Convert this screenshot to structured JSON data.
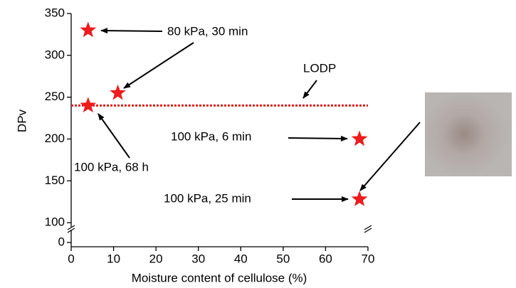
{
  "chart_data": {
    "type": "scatter",
    "x_label": "Moisture content of cellulose  (%)",
    "y_label": "DPv",
    "x": [
      4,
      11,
      4,
      68,
      68
    ],
    "series": [
      {
        "color": "#ee1c1c",
        "values": [
          330,
          255,
          240,
          200,
          128
        ]
      }
    ],
    "xlim": [
      0,
      70
    ],
    "xticks": [
      0,
      10,
      20,
      30,
      40,
      50,
      60,
      70
    ],
    "y_segments": [
      {
        "ylim": [
          -5,
          15
        ],
        "yticks": [
          0
        ]
      },
      {
        "ylim": [
          95,
          350
        ],
        "yticks": [
          100,
          150,
          200,
          250,
          300,
          350
        ]
      }
    ],
    "reference_line": {
      "value": 240,
      "color": "#e02020"
    },
    "annotations": [
      {
        "text": "80 kPa, 30 min"
      },
      {
        "text": "LODP"
      },
      {
        "text": "100 kPa, 6 min"
      },
      {
        "text": "100 kPa, 68 h"
      },
      {
        "text": "100 kPa, 25 min"
      }
    ]
  }
}
